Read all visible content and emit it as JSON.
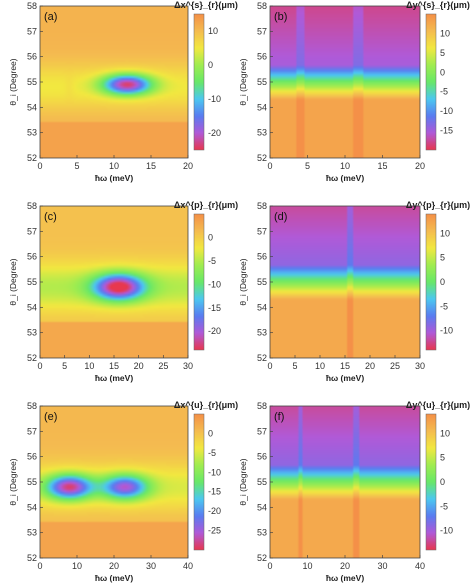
{
  "chart_data": [
    {
      "type": "heatmap",
      "panel_label": "(a)",
      "xlabel": "ħω (meV)",
      "ylabel": "θ_i (Degree)",
      "x_ticks": [
        "0",
        "5",
        "10",
        "15",
        "20"
      ],
      "y_ticks": [
        "52",
        "53",
        "54",
        "55",
        "56",
        "57",
        "58"
      ],
      "xlim": [
        0,
        20
      ],
      "ylim": [
        52,
        58
      ],
      "colorbar_label": "Δx^{s}_{r}(μm)",
      "colorbar_ticks": [
        "10",
        "0",
        "-10",
        "-20"
      ],
      "colorbar_range": [
        -25,
        15
      ],
      "pattern": "x",
      "features": [
        {
          "x": 4.0,
          "y": 54.8,
          "value": 10,
          "width": 0.6,
          "height": 1.2
        },
        {
          "x": 11.8,
          "y": 54.9,
          "value": -20,
          "width": 3.2,
          "height": 1.0
        }
      ],
      "colors": [
        "#e8384e",
        "#b05ad8",
        "#5a7cf0",
        "#4cc8f0",
        "#68e868",
        "#a0ec50",
        "#f2e840",
        "#f4bc50",
        "#f49048"
      ]
    },
    {
      "type": "heatmap",
      "panel_label": "(b)",
      "xlabel": "ħω (meV)",
      "ylabel": "θ_i (Degree)",
      "x_ticks": [
        "0",
        "5",
        "10",
        "15",
        "20"
      ],
      "y_ticks": [
        "52",
        "53",
        "54",
        "55",
        "56",
        "57",
        "58"
      ],
      "xlim": [
        0,
        20
      ],
      "ylim": [
        52,
        58
      ],
      "colorbar_label": "Δy^{s}_{r}(μm)",
      "colorbar_ticks": [
        "10",
        "5",
        "0",
        "-5",
        "-10",
        "-15"
      ],
      "colorbar_range": [
        -20,
        15
      ],
      "pattern": "y",
      "jumps": [
        4.0,
        11.8
      ],
      "colors": [
        "#e8384e",
        "#b05ad8",
        "#5a7cf0",
        "#4cc8f0",
        "#68e868",
        "#a0ec50",
        "#f2e840",
        "#f4bc50",
        "#f49048"
      ]
    },
    {
      "type": "heatmap",
      "panel_label": "(c)",
      "xlabel": "ħω (meV)",
      "ylabel": "θ_i (Degree)",
      "x_ticks": [
        "0",
        "5",
        "10",
        "15",
        "20",
        "25",
        "30"
      ],
      "y_ticks": [
        "52",
        "53",
        "54",
        "55",
        "56",
        "57",
        "58"
      ],
      "xlim": [
        0,
        30
      ],
      "ylim": [
        52,
        58
      ],
      "colorbar_label": "Δx^{p}_{r}(μm)",
      "colorbar_ticks": [
        "0",
        "-5",
        "-10",
        "-15",
        "-20"
      ],
      "colorbar_range": [
        -24,
        5
      ],
      "pattern": "x",
      "features": [
        {
          "x": 16.0,
          "y": 54.8,
          "value": -22,
          "width": 5.0,
          "height": 1.3
        }
      ],
      "colors": [
        "#e8384e",
        "#b05ad8",
        "#5a7cf0",
        "#4cc8f0",
        "#68e868",
        "#a0ec50",
        "#f2e840",
        "#f4bc50",
        "#f49048"
      ]
    },
    {
      "type": "heatmap",
      "panel_label": "(d)",
      "xlabel": "ħω (meV)",
      "ylabel": "θ_i (Degree)",
      "x_ticks": [
        "0",
        "5",
        "10",
        "15",
        "20",
        "25",
        "30"
      ],
      "y_ticks": [
        "52",
        "53",
        "54",
        "55",
        "56",
        "57",
        "58"
      ],
      "xlim": [
        0,
        30
      ],
      "ylim": [
        52,
        58
      ],
      "colorbar_label": "Δy^{p}_{r}(μm)",
      "colorbar_ticks": [
        "10",
        "5",
        "0",
        "-5",
        "-10"
      ],
      "colorbar_range": [
        -14,
        14
      ],
      "pattern": "y",
      "jumps": [
        16.0
      ],
      "colors": [
        "#e8384e",
        "#b05ad8",
        "#5a7cf0",
        "#4cc8f0",
        "#68e868",
        "#a0ec50",
        "#f2e840",
        "#f4bc50",
        "#f49048"
      ]
    },
    {
      "type": "heatmap",
      "panel_label": "(e)",
      "xlabel": "ħω (meV)",
      "ylabel": "θ_i (Degree)",
      "x_ticks": [
        "0",
        "10",
        "20",
        "30",
        "40"
      ],
      "y_ticks": [
        "52",
        "53",
        "54",
        "55",
        "56",
        "57",
        "58"
      ],
      "xlim": [
        0,
        40
      ],
      "ylim": [
        52,
        58
      ],
      "colorbar_label": "Δx^{u}_{r}(μm)",
      "colorbar_ticks": [
        "0",
        "-5",
        "-10",
        "-15",
        "-20",
        "-25"
      ],
      "colorbar_range": [
        -30,
        5
      ],
      "pattern": "x",
      "features": [
        {
          "x": 8.0,
          "y": 54.8,
          "value": -25,
          "width": 6.0,
          "height": 1.2
        },
        {
          "x": 23.0,
          "y": 54.8,
          "value": -22,
          "width": 6.0,
          "height": 1.2
        }
      ],
      "colors": [
        "#e8384e",
        "#b05ad8",
        "#5a7cf0",
        "#4cc8f0",
        "#68e868",
        "#a0ec50",
        "#f2e840",
        "#f4bc50",
        "#f49048"
      ]
    },
    {
      "type": "heatmap",
      "panel_label": "(f)",
      "xlabel": "ħω (meV)",
      "ylabel": "θ_i (Degree)",
      "x_ticks": [
        "0",
        "10",
        "20",
        "30",
        "40"
      ],
      "y_ticks": [
        "52",
        "53",
        "54",
        "55",
        "56",
        "57",
        "58"
      ],
      "xlim": [
        0,
        40
      ],
      "ylim": [
        52,
        58
      ],
      "colorbar_label": "Δy^{u}_{r}(μm)",
      "colorbar_ticks": [
        "10",
        "5",
        "0",
        "-5",
        "-10"
      ],
      "colorbar_range": [
        -14,
        14
      ],
      "pattern": "y",
      "jumps": [
        8.0,
        23.0
      ],
      "colors": [
        "#e8384e",
        "#b05ad8",
        "#5a7cf0",
        "#4cc8f0",
        "#68e868",
        "#a0ec50",
        "#f2e840",
        "#f4bc50",
        "#f49048"
      ]
    }
  ]
}
